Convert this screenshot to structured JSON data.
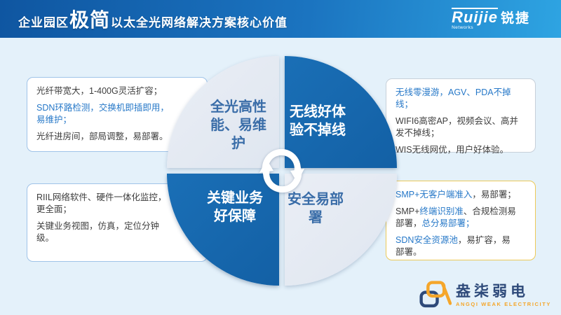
{
  "header": {
    "title_prefix": "企业园区",
    "title_emphasis": "极简",
    "title_suffix": "以太全光网络解决方案核心价值",
    "brand": {
      "name_en": "Ruijie",
      "name_sub": "Networks",
      "name_cn": "锐捷"
    }
  },
  "quadrants": {
    "top_left": {
      "label": "全光高性能、易维护"
    },
    "top_right": {
      "label": "无线好体验不掉线"
    },
    "bottom_left": {
      "label": "关键业务好保障"
    },
    "bottom_right": {
      "label": "安全易部署"
    }
  },
  "center_icon": "cycle-arrows",
  "boxes": {
    "top_left": {
      "lines": [
        [
          {
            "text": "光纤带宽大，1-400G灵活扩容；",
            "color": "dark"
          }
        ],
        [
          {
            "text": "SDN环路检测，交换机即插即用，\n易维护；",
            "color": "blue"
          }
        ],
        [
          {
            "text": "光纤进房间，部局调整，易部署。",
            "color": "dark"
          }
        ]
      ]
    },
    "bottom_left": {
      "lines": [
        [
          {
            "text": "RIIL网络软件、硬件一体化监控，\n更全面；",
            "color": "dark"
          }
        ],
        [
          {
            "text": "关键业务视图，仿真，定位分钟\n级。",
            "color": "dark"
          }
        ]
      ]
    },
    "top_right": {
      "lines": [
        [
          {
            "text": "无线零漫游，AGV、PDA不掉线；",
            "color": "blue"
          }
        ],
        [
          {
            "text": "WIFI6高密AP，视频会议、高并\n发不掉线；",
            "color": "dark"
          }
        ],
        [
          {
            "text": "WIS无线网优，用户好体验。",
            "color": "dark"
          }
        ]
      ]
    },
    "bottom_right": {
      "lines": [
        [
          {
            "text": "SMP+无客户端准入",
            "color": "blue"
          },
          {
            "text": "，易部署；",
            "color": "dark"
          }
        ],
        [
          {
            "text": "SMP+",
            "color": "dark"
          },
          {
            "text": "终端识别准",
            "color": "blue"
          },
          {
            "text": "、合规检测易\n部署，",
            "color": "dark"
          },
          {
            "text": "总分易部署；",
            "color": "blue"
          }
        ],
        [
          {
            "text": "SDN安全资源池",
            "color": "blue"
          },
          {
            "text": "，易扩容，易\n部署。",
            "color": "dark"
          }
        ]
      ]
    }
  },
  "footer_logo": {
    "name_cn": "盎柒弱电",
    "name_en": "ANGQI WEAK ELECTRICITY"
  },
  "colors": {
    "header_gradient_left": "#0f56a1",
    "header_gradient_right": "#2ea4e2",
    "body_background": "#e4f1fa",
    "quadrant_dark": "#1565aa",
    "quadrant_light": "#e3e9f2",
    "quadrant_text_blue": "#3a6da8",
    "text_blue": "#2678c8",
    "text_dark": "#3d3d3d",
    "border_blue": "#9fc3e8",
    "border_grey": "#c7d0d9",
    "border_gold": "#ecca59",
    "logo_orange": "#f5a62a",
    "logo_navy": "#2e4a7a"
  }
}
